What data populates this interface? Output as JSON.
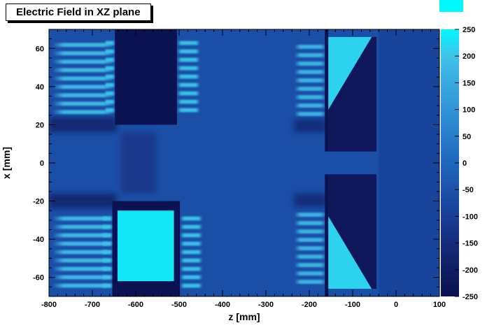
{
  "chart_data": {
    "type": "heatmap",
    "title": "Electric Field in XZ plane",
    "xlabel": "z [mm]",
    "ylabel": "x [mm]",
    "xlim": [
      -800,
      100
    ],
    "ylim": [
      -70,
      70
    ],
    "zlim": [
      -250,
      250
    ],
    "grid": false,
    "legend_position": "right-colorbar",
    "x_ticks": [
      -800,
      -700,
      -600,
      -500,
      -400,
      -300,
      -200,
      -100,
      0,
      100
    ],
    "y_ticks": [
      -60,
      -40,
      -20,
      0,
      20,
      40,
      60
    ],
    "colorbar_ticks": [
      250,
      200,
      150,
      100,
      50,
      0,
      -50,
      -100,
      -150,
      -200,
      -250
    ],
    "palette": [
      {
        "value": -250,
        "color": "#0a1150"
      },
      {
        "value": -200,
        "color": "#101d63"
      },
      {
        "value": -150,
        "color": "#152c7c"
      },
      {
        "value": -100,
        "color": "#183e95"
      },
      {
        "value": -50,
        "color": "#1c52ab"
      },
      {
        "value": 0,
        "color": "#2066bd"
      },
      {
        "value": 50,
        "color": "#287dcb"
      },
      {
        "value": 100,
        "color": "#3194d6"
      },
      {
        "value": 150,
        "color": "#38abdf"
      },
      {
        "value": 200,
        "color": "#40c2e8"
      },
      {
        "value": 250,
        "color": "#00f8ff"
      }
    ],
    "background_value": -60,
    "regions": [
      {
        "name": "left-dark-band-top",
        "type": "soft",
        "z": [
          -800,
          -644
        ],
        "x": [
          16,
          24
        ],
        "value": -190
      },
      {
        "name": "left-dark-band-bottom",
        "type": "soft",
        "z": [
          -800,
          -644
        ],
        "x": [
          -24,
          -16
        ],
        "value": -190
      },
      {
        "name": "left-comb-top",
        "type": "comb",
        "z": [
          -792,
          -648
        ],
        "x": [
          25,
          66
        ],
        "value": 190
      },
      {
        "name": "left-comb-bottom",
        "type": "comb",
        "z": [
          -792,
          -648
        ],
        "x": [
          -66,
          -25
        ],
        "value": 190
      },
      {
        "name": "central-axis-smudge",
        "type": "soft",
        "z": [
          -634,
          -552
        ],
        "x": [
          -16,
          16
        ],
        "value": -130
      },
      {
        "name": "cathode-dark-block-top",
        "type": "rect",
        "z": [
          -648,
          -505
        ],
        "x": [
          20,
          70
        ],
        "value": -245
      },
      {
        "name": "cathode-fringe-comb-left-top",
        "type": "comb",
        "z": [
          -672,
          -648
        ],
        "x": [
          26,
          66
        ],
        "value": 205
      },
      {
        "name": "cathode-fringe-comb-right-top",
        "type": "comb",
        "z": [
          -505,
          -452
        ],
        "x": [
          26,
          66
        ],
        "value": 205
      },
      {
        "name": "cathode-dark-frame-bottom",
        "type": "rect",
        "z": [
          -654,
          -498
        ],
        "x": [
          -70,
          -20
        ],
        "value": -245
      },
      {
        "name": "cathode-bright-block-bottom",
        "type": "rect",
        "z": [
          -642,
          -512
        ],
        "x": [
          -62,
          -25
        ],
        "value": 235
      },
      {
        "name": "cathode-fringe-comb-left-bottom",
        "type": "comb",
        "z": [
          -678,
          -654
        ],
        "x": [
          -66,
          -26
        ],
        "value": 205
      },
      {
        "name": "cathode-fringe-comb-right-bottom",
        "type": "comb",
        "z": [
          -498,
          -446
        ],
        "x": [
          -66,
          -26
        ],
        "value": 205
      },
      {
        "name": "right-dark-band-top",
        "type": "soft",
        "z": [
          -235,
          -160
        ],
        "x": [
          16,
          23
        ],
        "value": -170
      },
      {
        "name": "right-dark-band-bottom",
        "type": "soft",
        "z": [
          -235,
          -160
        ],
        "x": [
          -23,
          -16
        ],
        "value": -170
      },
      {
        "name": "right-comb-top",
        "type": "comb",
        "z": [
          -234,
          -160
        ],
        "x": [
          24,
          64
        ],
        "value": 180
      },
      {
        "name": "right-comb-bottom",
        "type": "comb",
        "z": [
          -234,
          -160
        ],
        "x": [
          -64,
          -24
        ],
        "value": 180
      },
      {
        "name": "anode-gap-line-top",
        "type": "rect",
        "z": [
          -164,
          -156
        ],
        "x": [
          6,
          70
        ],
        "value": -245
      },
      {
        "name": "anode-gap-line-bottom",
        "type": "rect",
        "z": [
          -164,
          -156
        ],
        "x": [
          -70,
          -6
        ],
        "value": -245
      },
      {
        "name": "anode-dark-wedge-top",
        "type": "rect",
        "z": [
          -156,
          -45
        ],
        "x": [
          6,
          66
        ],
        "value": -225
      },
      {
        "name": "anode-bright-triangle-top",
        "type": "polygon",
        "points": [
          [
            -156,
            28
          ],
          [
            -156,
            66
          ],
          [
            -56,
            66
          ]
        ],
        "value": 215
      },
      {
        "name": "anode-dark-wedge-bottom",
        "type": "rect",
        "z": [
          -156,
          -45
        ],
        "x": [
          -66,
          -6
        ],
        "value": -225
      },
      {
        "name": "anode-bright-triangle-bottom",
        "type": "polygon",
        "points": [
          [
            -156,
            -28
          ],
          [
            -156,
            -66
          ],
          [
            -56,
            -66
          ]
        ],
        "value": 215
      },
      {
        "name": "right-uniform-column",
        "type": "rect",
        "z": [
          -40,
          100
        ],
        "x": [
          -70,
          70
        ],
        "value": -85
      }
    ]
  }
}
